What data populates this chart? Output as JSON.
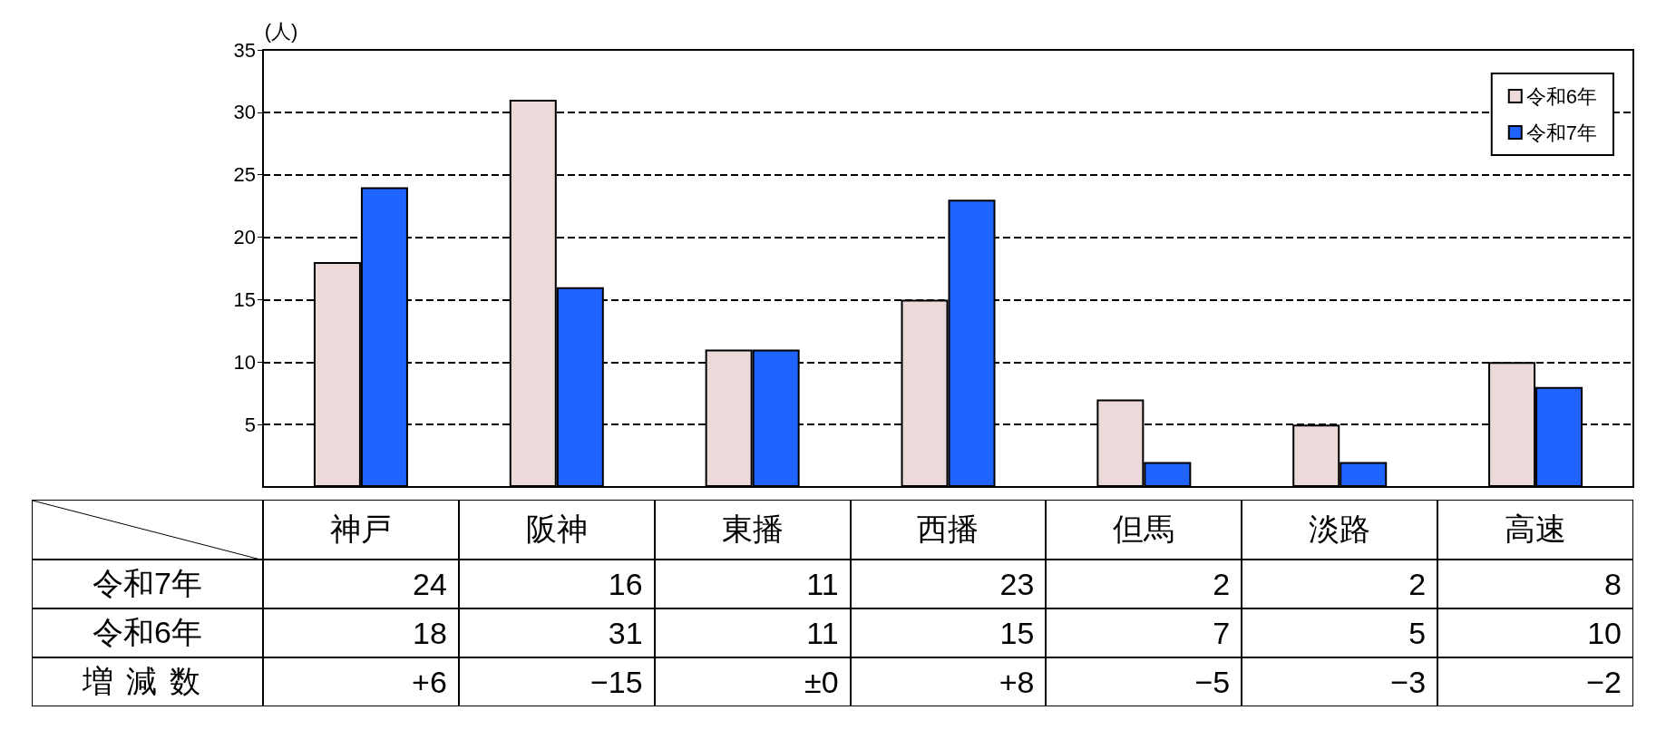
{
  "chart_data": {
    "type": "bar",
    "ylabel": "(人)",
    "categories": [
      "神戸",
      "阪神",
      "東播",
      "西播",
      "但馬",
      "淡路",
      "高速"
    ],
    "series": [
      {
        "name": "令和6年",
        "color": "#ecdada",
        "values": [
          18,
          31,
          11,
          15,
          7,
          5,
          10
        ]
      },
      {
        "name": "令和7年",
        "color": "#1f64ff",
        "values": [
          24,
          16,
          11,
          23,
          2,
          2,
          8
        ]
      }
    ],
    "ylim": [
      0,
      35
    ],
    "yticks": [
      5,
      10,
      15,
      20,
      25,
      30,
      35
    ],
    "grid": "y",
    "legend": "top right",
    "data_labels": true,
    "annotations": [
      "増減数",
      "+6",
      "−15",
      "±0",
      "+8",
      "−5",
      "−3",
      "−2"
    ]
  }
}
